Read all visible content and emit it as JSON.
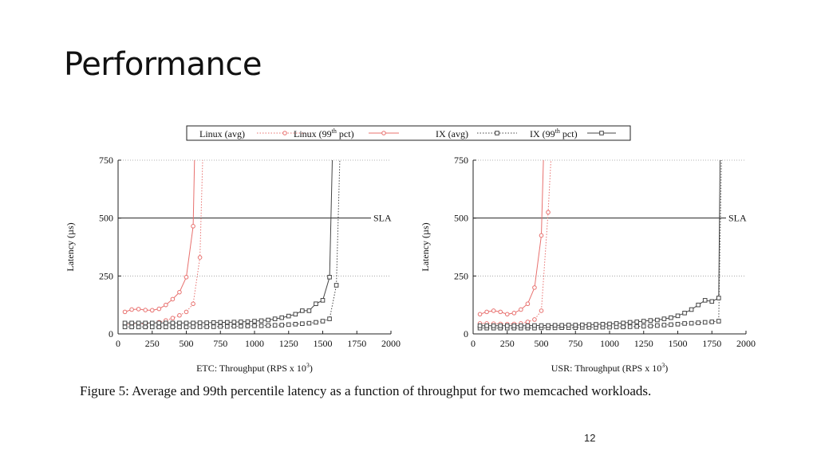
{
  "slide": {
    "title": "Performance",
    "caption": "Figure 5: Average and 99th percentile latency as a function of throughput for two memcached workloads.",
    "page_number": "12"
  },
  "legend": {
    "placement": "top-center",
    "entries": [
      {
        "text": "Linux (avg)",
        "sup": "",
        "suffix": "",
        "color": "#e8706e",
        "style": "dotted",
        "marker": "circle"
      },
      {
        "text": "Linux (99",
        "sup": "th",
        "suffix": " pct)",
        "color": "#e8706e",
        "style": "solid",
        "marker": "circle"
      },
      {
        "text": "IX (avg)",
        "sup": "",
        "suffix": "",
        "color": "#444444",
        "style": "dotted",
        "marker": "square"
      },
      {
        "text": "IX (99",
        "sup": "th",
        "suffix": " pct)",
        "color": "#444444",
        "style": "solid",
        "marker": "square"
      }
    ]
  },
  "chart_data": [
    {
      "type": "line",
      "xlabel": "ETC: Throughput (RPS x 10",
      "xlabel_sup": "3",
      "xlabel_suffix": ")",
      "ylabel": "Latency (µs)",
      "xlim": [
        0,
        2000
      ],
      "ylim": [
        0,
        750
      ],
      "xticks": [
        0,
        250,
        500,
        750,
        1000,
        1250,
        1500,
        1750,
        2000
      ],
      "yticks": [
        0,
        250,
        500,
        750
      ],
      "grid": "horizontal-dotted",
      "sla": {
        "value": 500,
        "label": "SLA"
      },
      "series": [
        {
          "name": "Linux (avg)",
          "color": "#e8706e",
          "style": "dotted",
          "marker": "circle",
          "points": [
            [
              50,
              40
            ],
            [
              100,
              42
            ],
            [
              150,
              43
            ],
            [
              200,
              44
            ],
            [
              250,
              46
            ],
            [
              300,
              50
            ],
            [
              350,
              58
            ],
            [
              400,
              68
            ],
            [
              450,
              80
            ],
            [
              500,
              95
            ],
            [
              550,
              130
            ],
            [
              600,
              330
            ],
            [
              620,
              750
            ]
          ]
        },
        {
          "name": "Linux (99th pct)",
          "color": "#e8706e",
          "style": "solid",
          "marker": "circle",
          "points": [
            [
              50,
              95
            ],
            [
              100,
              105
            ],
            [
              150,
              107
            ],
            [
              200,
              103
            ],
            [
              250,
              102
            ],
            [
              300,
              108
            ],
            [
              350,
              125
            ],
            [
              400,
              150
            ],
            [
              450,
              180
            ],
            [
              500,
              245
            ],
            [
              550,
              465
            ],
            [
              560,
              750
            ]
          ]
        },
        {
          "name": "IX (avg)",
          "color": "#444444",
          "style": "dotted",
          "marker": "square",
          "points": [
            [
              50,
              30
            ],
            [
              100,
              30
            ],
            [
              150,
              30
            ],
            [
              200,
              30
            ],
            [
              250,
              30
            ],
            [
              300,
              30
            ],
            [
              350,
              30
            ],
            [
              400,
              30
            ],
            [
              450,
              30
            ],
            [
              500,
              30
            ],
            [
              550,
              31
            ],
            [
              600,
              31
            ],
            [
              650,
              31
            ],
            [
              700,
              31
            ],
            [
              750,
              32
            ],
            [
              800,
              32
            ],
            [
              850,
              33
            ],
            [
              900,
              33
            ],
            [
              950,
              34
            ],
            [
              1000,
              35
            ],
            [
              1050,
              35
            ],
            [
              1100,
              36
            ],
            [
              1150,
              37
            ],
            [
              1200,
              38
            ],
            [
              1250,
              40
            ],
            [
              1300,
              42
            ],
            [
              1350,
              44
            ],
            [
              1400,
              46
            ],
            [
              1450,
              50
            ],
            [
              1500,
              55
            ],
            [
              1550,
              65
            ],
            [
              1600,
              210
            ],
            [
              1625,
              750
            ]
          ]
        },
        {
          "name": "IX (99th pct)",
          "color": "#444444",
          "style": "solid",
          "marker": "square",
          "points": [
            [
              50,
              47
            ],
            [
              100,
              47
            ],
            [
              150,
              47
            ],
            [
              200,
              47
            ],
            [
              250,
              47
            ],
            [
              300,
              47
            ],
            [
              350,
              47
            ],
            [
              400,
              47
            ],
            [
              450,
              47
            ],
            [
              500,
              47
            ],
            [
              550,
              47
            ],
            [
              600,
              48
            ],
            [
              650,
              48
            ],
            [
              700,
              49
            ],
            [
              750,
              50
            ],
            [
              800,
              50
            ],
            [
              850,
              51
            ],
            [
              900,
              52
            ],
            [
              950,
              53
            ],
            [
              1000,
              55
            ],
            [
              1050,
              57
            ],
            [
              1100,
              60
            ],
            [
              1150,
              65
            ],
            [
              1200,
              70
            ],
            [
              1250,
              77
            ],
            [
              1300,
              85
            ],
            [
              1350,
              100
            ],
            [
              1400,
              100
            ],
            [
              1450,
              130
            ],
            [
              1500,
              145
            ],
            [
              1550,
              245
            ],
            [
              1570,
              750
            ]
          ]
        }
      ]
    },
    {
      "type": "line",
      "xlabel": "USR: Throughput (RPS x 10",
      "xlabel_sup": "3",
      "xlabel_suffix": ")",
      "ylabel": "Latency (µs)",
      "xlim": [
        0,
        2000
      ],
      "ylim": [
        0,
        750
      ],
      "xticks": [
        0,
        250,
        500,
        750,
        1000,
        1250,
        1500,
        1750,
        2000
      ],
      "yticks": [
        0,
        250,
        500,
        750
      ],
      "grid": "horizontal-dotted",
      "sla": {
        "value": 500,
        "label": "SLA"
      },
      "series": [
        {
          "name": "Linux (avg)",
          "color": "#e8706e",
          "style": "dotted",
          "marker": "circle",
          "points": [
            [
              50,
              45
            ],
            [
              100,
              45
            ],
            [
              150,
              44
            ],
            [
              200,
              43
            ],
            [
              250,
              42
            ],
            [
              300,
              43
            ],
            [
              350,
              45
            ],
            [
              400,
              52
            ],
            [
              450,
              62
            ],
            [
              500,
              100
            ],
            [
              550,
              525
            ],
            [
              570,
              750
            ]
          ]
        },
        {
          "name": "Linux (99th pct)",
          "color": "#e8706e",
          "style": "solid",
          "marker": "circle",
          "points": [
            [
              50,
              85
            ],
            [
              100,
              95
            ],
            [
              150,
              100
            ],
            [
              200,
              95
            ],
            [
              250,
              85
            ],
            [
              300,
              90
            ],
            [
              350,
              105
            ],
            [
              400,
              130
            ],
            [
              450,
              200
            ],
            [
              500,
              425
            ],
            [
              515,
              750
            ]
          ]
        },
        {
          "name": "IX (avg)",
          "color": "#444444",
          "style": "dotted",
          "marker": "square",
          "points": [
            [
              50,
              25
            ],
            [
              100,
              25
            ],
            [
              150,
              25
            ],
            [
              200,
              25
            ],
            [
              250,
              25
            ],
            [
              300,
              25
            ],
            [
              350,
              25
            ],
            [
              400,
              25
            ],
            [
              450,
              25
            ],
            [
              500,
              26
            ],
            [
              550,
              26
            ],
            [
              600,
              26
            ],
            [
              650,
              27
            ],
            [
              700,
              27
            ],
            [
              750,
              27
            ],
            [
              800,
              28
            ],
            [
              850,
              28
            ],
            [
              900,
              28
            ],
            [
              950,
              29
            ],
            [
              1000,
              29
            ],
            [
              1050,
              30
            ],
            [
              1100,
              30
            ],
            [
              1150,
              31
            ],
            [
              1200,
              32
            ],
            [
              1250,
              33
            ],
            [
              1300,
              34
            ],
            [
              1350,
              36
            ],
            [
              1400,
              38
            ],
            [
              1450,
              40
            ],
            [
              1500,
              42
            ],
            [
              1550,
              45
            ],
            [
              1600,
              46
            ],
            [
              1650,
              48
            ],
            [
              1700,
              50
            ],
            [
              1750,
              52
            ],
            [
              1800,
              55
            ],
            [
              1820,
              750
            ]
          ]
        },
        {
          "name": "IX (99th pct)",
          "color": "#444444",
          "style": "solid",
          "marker": "square",
          "points": [
            [
              50,
              35
            ],
            [
              100,
              35
            ],
            [
              150,
              35
            ],
            [
              200,
              35
            ],
            [
              250,
              35
            ],
            [
              300,
              35
            ],
            [
              350,
              35
            ],
            [
              400,
              35
            ],
            [
              450,
              36
            ],
            [
              500,
              36
            ],
            [
              550,
              36
            ],
            [
              600,
              37
            ],
            [
              650,
              37
            ],
            [
              700,
              38
            ],
            [
              750,
              38
            ],
            [
              800,
              39
            ],
            [
              850,
              40
            ],
            [
              900,
              41
            ],
            [
              950,
              42
            ],
            [
              1000,
              43
            ],
            [
              1050,
              45
            ],
            [
              1100,
              47
            ],
            [
              1150,
              50
            ],
            [
              1200,
              52
            ],
            [
              1250,
              55
            ],
            [
              1300,
              58
            ],
            [
              1350,
              60
            ],
            [
              1400,
              65
            ],
            [
              1450,
              70
            ],
            [
              1500,
              78
            ],
            [
              1550,
              90
            ],
            [
              1600,
              105
            ],
            [
              1650,
              125
            ],
            [
              1700,
              145
            ],
            [
              1750,
              140
            ],
            [
              1800,
              155
            ],
            [
              1810,
              750
            ]
          ]
        }
      ]
    }
  ]
}
